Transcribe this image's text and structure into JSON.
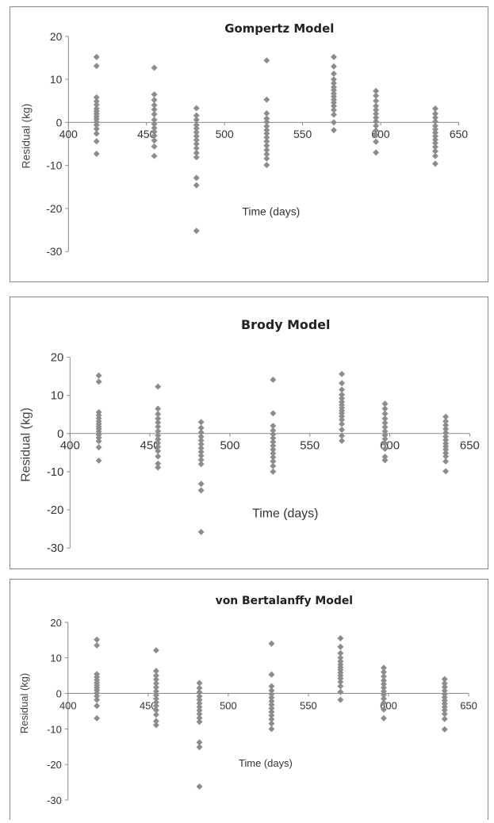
{
  "chart_data": [
    {
      "type": "scatter",
      "title": "Gompertz Model",
      "xlabel": "Time (days)",
      "ylabel": "Residual (kg)",
      "xlim": [
        400,
        650
      ],
      "ylim": [
        -30,
        20
      ],
      "xticks": [
        "400",
        "450",
        "500",
        "550",
        "600",
        "650"
      ],
      "yticks": [
        "20",
        "10",
        "0",
        "-10",
        "-20",
        "-30"
      ],
      "marker_color": "#8c8c8c",
      "grid": false,
      "legend": "none",
      "points": [
        [
          418,
          15.2
        ],
        [
          418,
          13.1
        ],
        [
          418,
          5.8
        ],
        [
          418,
          4.9
        ],
        [
          418,
          4.1
        ],
        [
          418,
          3.2
        ],
        [
          418,
          2.6
        ],
        [
          418,
          2.0
        ],
        [
          418,
          1.4
        ],
        [
          418,
          0.8
        ],
        [
          418,
          0.1
        ],
        [
          418,
          -0.6
        ],
        [
          418,
          -1.5
        ],
        [
          418,
          -2.6
        ],
        [
          418,
          -4.4
        ],
        [
          418,
          -7.3
        ],
        [
          455,
          12.7
        ],
        [
          455,
          6.5
        ],
        [
          455,
          5.2
        ],
        [
          455,
          4.0
        ],
        [
          455,
          3.0
        ],
        [
          455,
          1.9
        ],
        [
          455,
          0.6
        ],
        [
          455,
          -0.4
        ],
        [
          455,
          -1.3
        ],
        [
          455,
          -2.2
        ],
        [
          455,
          -3.1
        ],
        [
          455,
          -4.2
        ],
        [
          455,
          -5.6
        ],
        [
          455,
          -7.8
        ],
        [
          482,
          3.3
        ],
        [
          482,
          1.6
        ],
        [
          482,
          0.6
        ],
        [
          482,
          -0.6
        ],
        [
          482,
          -1.4
        ],
        [
          482,
          -2.3
        ],
        [
          482,
          -3.2
        ],
        [
          482,
          -4.1
        ],
        [
          482,
          -5.0
        ],
        [
          482,
          -6.0
        ],
        [
          482,
          -7.1
        ],
        [
          482,
          -8.1
        ],
        [
          482,
          -12.9
        ],
        [
          482,
          -14.6
        ],
        [
          482,
          -25.2
        ],
        [
          527,
          14.4
        ],
        [
          527,
          5.3
        ],
        [
          527,
          2.1
        ],
        [
          527,
          0.9
        ],
        [
          527,
          0.1
        ],
        [
          527,
          -0.9
        ],
        [
          527,
          -1.8
        ],
        [
          527,
          -2.6
        ],
        [
          527,
          -3.5
        ],
        [
          527,
          -4.4
        ],
        [
          527,
          -5.4
        ],
        [
          527,
          -6.4
        ],
        [
          527,
          -7.4
        ],
        [
          527,
          -8.4
        ],
        [
          527,
          -9.9
        ],
        [
          570,
          15.2
        ],
        [
          570,
          13.0
        ],
        [
          570,
          11.3
        ],
        [
          570,
          10.0
        ],
        [
          570,
          9.1
        ],
        [
          570,
          8.2
        ],
        [
          570,
          7.5
        ],
        [
          570,
          6.7
        ],
        [
          570,
          6.0
        ],
        [
          570,
          5.3
        ],
        [
          570,
          4.6
        ],
        [
          570,
          3.8
        ],
        [
          570,
          2.9
        ],
        [
          570,
          1.8
        ],
        [
          570,
          0.0
        ],
        [
          570,
          -1.8
        ],
        [
          597,
          7.3
        ],
        [
          597,
          6.2
        ],
        [
          597,
          5.0
        ],
        [
          597,
          3.8
        ],
        [
          597,
          2.9
        ],
        [
          597,
          2.0
        ],
        [
          597,
          1.1
        ],
        [
          597,
          0.2
        ],
        [
          597,
          -0.8
        ],
        [
          597,
          -1.9
        ],
        [
          597,
          -3.0
        ],
        [
          597,
          -4.5
        ],
        [
          597,
          -7.0
        ],
        [
          635,
          3.2
        ],
        [
          635,
          2.0
        ],
        [
          635,
          1.1
        ],
        [
          635,
          0.2
        ],
        [
          635,
          -0.8
        ],
        [
          635,
          -1.6
        ],
        [
          635,
          -2.4
        ],
        [
          635,
          -3.2
        ],
        [
          635,
          -4.0
        ],
        [
          635,
          -4.8
        ],
        [
          635,
          -5.7
        ],
        [
          635,
          -6.7
        ],
        [
          635,
          -7.8
        ],
        [
          635,
          -9.6
        ]
      ]
    },
    {
      "type": "scatter",
      "title": "Brody Model",
      "xlabel": "Time (days)",
      "ylabel": "Residual (kg)",
      "xlim": [
        400,
        650
      ],
      "ylim": [
        -30,
        20
      ],
      "xticks": [
        "400",
        "450",
        "500",
        "550",
        "600",
        "650"
      ],
      "yticks": [
        "20",
        "10",
        "0",
        "-10",
        "-20",
        "-30"
      ],
      "marker_color": "#8c8c8c",
      "grid": false,
      "legend": "none",
      "points": [
        [
          418,
          15.2
        ],
        [
          418,
          13.6
        ],
        [
          418,
          5.6
        ],
        [
          418,
          4.8
        ],
        [
          418,
          4.0
        ],
        [
          418,
          3.2
        ],
        [
          418,
          2.5
        ],
        [
          418,
          1.8
        ],
        [
          418,
          1.2
        ],
        [
          418,
          0.5
        ],
        [
          418,
          -0.3
        ],
        [
          418,
          -1.1
        ],
        [
          418,
          -2.0
        ],
        [
          418,
          -3.6
        ],
        [
          418,
          -7.1
        ],
        [
          455,
          12.3
        ],
        [
          455,
          6.5
        ],
        [
          455,
          5.1
        ],
        [
          455,
          3.9
        ],
        [
          455,
          2.9
        ],
        [
          455,
          1.8
        ],
        [
          455,
          0.6
        ],
        [
          455,
          -0.5
        ],
        [
          455,
          -1.5
        ],
        [
          455,
          -2.5
        ],
        [
          455,
          -3.5
        ],
        [
          455,
          -4.6
        ],
        [
          455,
          -6.0
        ],
        [
          455,
          -7.9
        ],
        [
          455,
          -8.9
        ],
        [
          482,
          3.0
        ],
        [
          482,
          1.5
        ],
        [
          482,
          0.3
        ],
        [
          482,
          -0.8
        ],
        [
          482,
          -1.8
        ],
        [
          482,
          -2.8
        ],
        [
          482,
          -3.8
        ],
        [
          482,
          -4.8
        ],
        [
          482,
          -5.8
        ],
        [
          482,
          -6.9
        ],
        [
          482,
          -8.0
        ],
        [
          482,
          -13.2
        ],
        [
          482,
          -14.9
        ],
        [
          482,
          -25.8
        ],
        [
          527,
          14.1
        ],
        [
          527,
          5.3
        ],
        [
          527,
          2.0
        ],
        [
          527,
          0.8
        ],
        [
          527,
          -0.2
        ],
        [
          527,
          -1.2
        ],
        [
          527,
          -2.2
        ],
        [
          527,
          -3.2
        ],
        [
          527,
          -4.2
        ],
        [
          527,
          -5.2
        ],
        [
          527,
          -6.2
        ],
        [
          527,
          -7.3
        ],
        [
          527,
          -8.5
        ],
        [
          527,
          -10.0
        ],
        [
          570,
          15.6
        ],
        [
          570,
          13.2
        ],
        [
          570,
          11.5
        ],
        [
          570,
          10.2
        ],
        [
          570,
          9.2
        ],
        [
          570,
          8.3
        ],
        [
          570,
          7.5
        ],
        [
          570,
          6.7
        ],
        [
          570,
          6.0
        ],
        [
          570,
          5.3
        ],
        [
          570,
          4.5
        ],
        [
          570,
          3.6
        ],
        [
          570,
          2.5
        ],
        [
          570,
          1.0
        ],
        [
          570,
          -0.6
        ],
        [
          570,
          -1.9
        ],
        [
          597,
          7.8
        ],
        [
          597,
          6.5
        ],
        [
          597,
          5.2
        ],
        [
          597,
          3.9
        ],
        [
          597,
          2.8
        ],
        [
          597,
          1.7
        ],
        [
          597,
          0.6
        ],
        [
          597,
          -0.4
        ],
        [
          597,
          -1.4
        ],
        [
          597,
          -2.6
        ],
        [
          597,
          -4.0
        ],
        [
          597,
          -6.1
        ],
        [
          597,
          -7.0
        ],
        [
          635,
          4.4
        ],
        [
          635,
          3.2
        ],
        [
          635,
          2.2
        ],
        [
          635,
          1.2
        ],
        [
          635,
          0.2
        ],
        [
          635,
          -0.8
        ],
        [
          635,
          -1.7
        ],
        [
          635,
          -2.6
        ],
        [
          635,
          -3.4
        ],
        [
          635,
          -4.2
        ],
        [
          635,
          -5.1
        ],
        [
          635,
          -6.0
        ],
        [
          635,
          -7.3
        ],
        [
          635,
          -9.9
        ]
      ]
    },
    {
      "type": "scatter",
      "title": "von Bertalanffy Model",
      "xlabel": "Time (days)",
      "ylabel": "Residual (kg)",
      "xlim": [
        400,
        650
      ],
      "ylim": [
        -30,
        20
      ],
      "xticks": [
        "400",
        "450",
        "500",
        "550",
        "600",
        "650"
      ],
      "yticks": [
        "20",
        "10",
        "0",
        "-10",
        "-20",
        "-30"
      ],
      "marker_color": "#8c8c8c",
      "grid": false,
      "legend": "none",
      "points": [
        [
          418,
          15.1
        ],
        [
          418,
          13.5
        ],
        [
          418,
          5.4
        ],
        [
          418,
          4.6
        ],
        [
          418,
          3.8
        ],
        [
          418,
          3.0
        ],
        [
          418,
          2.3
        ],
        [
          418,
          1.6
        ],
        [
          418,
          0.9
        ],
        [
          418,
          0.1
        ],
        [
          418,
          -0.8
        ],
        [
          418,
          -1.8
        ],
        [
          418,
          -3.5
        ],
        [
          418,
          -7.0
        ],
        [
          455,
          12.1
        ],
        [
          455,
          6.3
        ],
        [
          455,
          5.0
        ],
        [
          455,
          3.9
        ],
        [
          455,
          2.8
        ],
        [
          455,
          1.7
        ],
        [
          455,
          0.6
        ],
        [
          455,
          -0.5
        ],
        [
          455,
          -1.5
        ],
        [
          455,
          -2.5
        ],
        [
          455,
          -3.5
        ],
        [
          455,
          -4.7
        ],
        [
          455,
          -6.0
        ],
        [
          455,
          -7.8
        ],
        [
          455,
          -8.9
        ],
        [
          482,
          2.9
        ],
        [
          482,
          1.5
        ],
        [
          482,
          0.3
        ],
        [
          482,
          -0.8
        ],
        [
          482,
          -1.8
        ],
        [
          482,
          -2.8
        ],
        [
          482,
          -3.8
        ],
        [
          482,
          -4.8
        ],
        [
          482,
          -5.8
        ],
        [
          482,
          -6.9
        ],
        [
          482,
          -8.0
        ],
        [
          482,
          -13.8
        ],
        [
          482,
          -15.1
        ],
        [
          482,
          -26.2
        ],
        [
          527,
          14.0
        ],
        [
          527,
          5.3
        ],
        [
          527,
          2.0
        ],
        [
          527,
          0.8
        ],
        [
          527,
          -0.2
        ],
        [
          527,
          -1.2
        ],
        [
          527,
          -2.2
        ],
        [
          527,
          -3.2
        ],
        [
          527,
          -4.2
        ],
        [
          527,
          -5.2
        ],
        [
          527,
          -6.2
        ],
        [
          527,
          -7.3
        ],
        [
          527,
          -8.5
        ],
        [
          527,
          -10.0
        ],
        [
          570,
          15.5
        ],
        [
          570,
          13.1
        ],
        [
          570,
          11.3
        ],
        [
          570,
          10.0
        ],
        [
          570,
          9.0
        ],
        [
          570,
          8.1
        ],
        [
          570,
          7.3
        ],
        [
          570,
          6.6
        ],
        [
          570,
          5.8
        ],
        [
          570,
          5.0
        ],
        [
          570,
          4.2
        ],
        [
          570,
          3.2
        ],
        [
          570,
          2.0
        ],
        [
          570,
          0.4
        ],
        [
          570,
          -1.8
        ],
        [
          597,
          7.2
        ],
        [
          597,
          6.0
        ],
        [
          597,
          4.8
        ],
        [
          597,
          3.6
        ],
        [
          597,
          2.6
        ],
        [
          597,
          1.6
        ],
        [
          597,
          0.6
        ],
        [
          597,
          -0.4
        ],
        [
          597,
          -1.5
        ],
        [
          597,
          -2.7
        ],
        [
          597,
          -4.5
        ],
        [
          597,
          -7.0
        ],
        [
          635,
          4.0
        ],
        [
          635,
          2.8
        ],
        [
          635,
          1.8
        ],
        [
          635,
          0.8
        ],
        [
          635,
          -0.2
        ],
        [
          635,
          -1.1
        ],
        [
          635,
          -2.0
        ],
        [
          635,
          -2.9
        ],
        [
          635,
          -3.8
        ],
        [
          635,
          -4.7
        ],
        [
          635,
          -5.8
        ],
        [
          635,
          -7.2
        ],
        [
          635,
          -10.1
        ]
      ]
    }
  ]
}
